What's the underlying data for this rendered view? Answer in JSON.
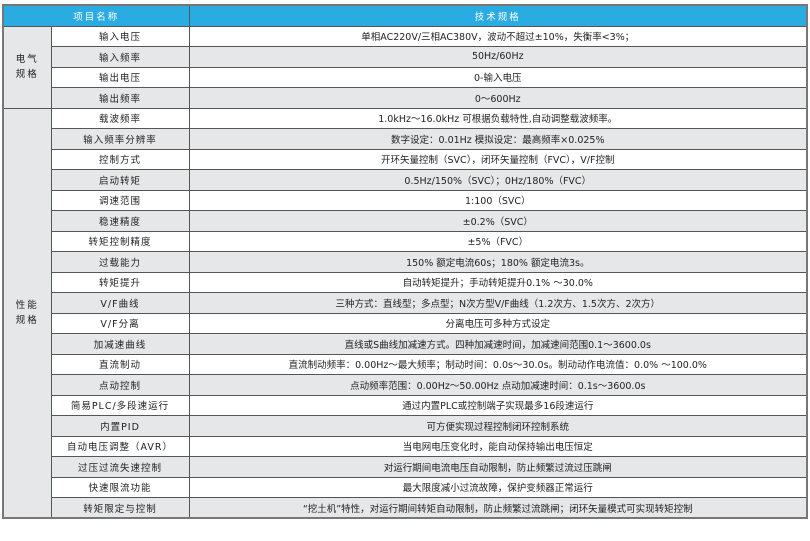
{
  "header": {
    "name": "项目名称",
    "spec": "技术规格"
  },
  "groups": [
    {
      "label": "电气规格",
      "rows": [
        {
          "name": "输入电压",
          "spec": "单相AC220V/三相AC380V，波动不超过±10%，失衡率<3%；"
        },
        {
          "name": "输入频率",
          "spec": "50Hz/60Hz"
        },
        {
          "name": "输出电压",
          "spec": "0-输入电压"
        },
        {
          "name": "输出频率",
          "spec": "0～600Hz"
        }
      ]
    },
    {
      "label": "性能规格",
      "rows": [
        {
          "name": "载波频率",
          "spec": "1.0kHz～16.0kHz 可根据负载特性,自动调整载波频率。"
        },
        {
          "name": "输入频率分辨率",
          "spec": "数字设定：0.01Hz 模拟设定：最高频率×0.025%"
        },
        {
          "name": "控制方式",
          "spec": "开环矢量控制（SVC），闭环矢量控制（FVC），V/F控制"
        },
        {
          "name": "启动转矩",
          "spec": "0.5Hz/150%（SVC）；0Hz/180%（FVC）"
        },
        {
          "name": "调速范围",
          "spec": "1:100（SVC）"
        },
        {
          "name": "稳速精度",
          "spec": "±0.2%（SVC）"
        },
        {
          "name": "转矩控制精度",
          "spec": "±5%（FVC）"
        },
        {
          "name": "过载能力",
          "spec": "150% 额定电流60s；180% 额定电流3s。"
        },
        {
          "name": "转矩提升",
          "spec": "自动转矩提升；手动转矩提升0.1% ～30.0%"
        },
        {
          "name": "V/F曲线",
          "spec": "三种方式：直线型；多点型；N次方型V/F曲线（1.2次方、1.5次方、2次方）"
        },
        {
          "name": "V/F分离",
          "spec": "分离电压可多种方式设定"
        },
        {
          "name": "加减速曲线",
          "spec": "直线或S曲线加减速方式。四种加减速时间，加减速间范围0.1～3600.0s"
        },
        {
          "name": "直流制动",
          "spec": "直流制动频率：0.00Hz～最大频率；制动时间：0.0s～30.0s。制动动作电流值：0.0% ～100.0%"
        },
        {
          "name": "点动控制",
          "spec": "点动频率范围：0.00Hz～50.00Hz 点动加减速时间：0.1s～3600.0s"
        },
        {
          "name": "简易PLC/多段速运行",
          "spec": "通过内置PLC或控制端子实现最多16段速运行"
        },
        {
          "name": "内置PID",
          "spec": "可方便实现过程控制闭环控制系统"
        },
        {
          "name": "自动电压调整（AVR）",
          "spec": "当电网电压变化时，能自动保持输出电压恒定"
        },
        {
          "name": "过压过流失速控制",
          "spec": "对运行期间电流电压自动限制，防止频繁过流过压跳闸"
        },
        {
          "name": "快速限流功能",
          "spec": "最大限度减小过流故障，保护变频器正常运行"
        },
        {
          "name": "转矩限定与控制",
          "spec": "“挖土机”特性，对运行期间转矩自动限制，防止频繁过流跳闸；闭环矢量模式可实现转矩控制"
        }
      ]
    }
  ],
  "colors": {
    "header": "#2aace2",
    "stripe": "#e6e7e8",
    "border": "#555555"
  }
}
